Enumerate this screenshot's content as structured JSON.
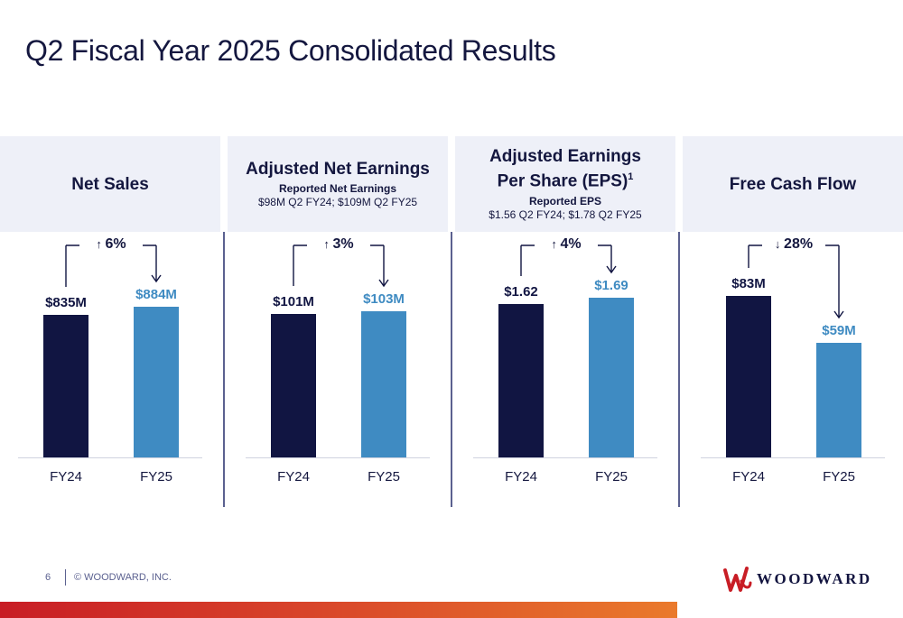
{
  "header": {
    "title": "Q2 Fiscal Year 2025 Consolidated Results"
  },
  "colors": {
    "fy24": "#111542",
    "fy25": "#3f8bc2",
    "panel_bg": "#eef0f8",
    "accent_red": "#c81d25"
  },
  "panels": [
    {
      "title": "Net Sales",
      "title_sup": "",
      "sub1": "",
      "sub2": "",
      "change": "6%",
      "direction": "up"
    },
    {
      "title": "Adjusted Net Earnings",
      "title_sup": "",
      "sub1": "Reported Net Earnings",
      "sub2": "$98M Q2 FY24; $109M Q2 FY25",
      "change": "3%",
      "direction": "up"
    },
    {
      "title": "Adjusted Earnings Per Share (EPS)",
      "title_sup": "1",
      "sub1": "Reported EPS",
      "sub2": "$1.56 Q2 FY24; $1.78 Q2 FY25",
      "change": "4%",
      "direction": "up"
    },
    {
      "title": "Free Cash Flow",
      "title_sup": "",
      "sub1": "",
      "sub2": "",
      "change": "28%",
      "direction": "down"
    }
  ],
  "chart_data": [
    {
      "type": "bar",
      "title": "Net Sales",
      "categories": [
        "FY24",
        "FY25"
      ],
      "values": [
        835,
        884
      ],
      "labels": [
        "$835M",
        "$884M"
      ],
      "unit": "$M"
    },
    {
      "type": "bar",
      "title": "Adjusted Net Earnings",
      "categories": [
        "FY24",
        "FY25"
      ],
      "values": [
        101,
        103
      ],
      "labels": [
        "$101M",
        "$103M"
      ],
      "unit": "$M"
    },
    {
      "type": "bar",
      "title": "Adjusted Earnings Per Share (EPS)",
      "categories": [
        "FY24",
        "FY25"
      ],
      "values": [
        1.62,
        1.69
      ],
      "labels": [
        "$1.62",
        "$1.69"
      ],
      "unit": "$"
    },
    {
      "type": "bar",
      "title": "Free Cash Flow",
      "categories": [
        "FY24",
        "FY25"
      ],
      "values": [
        83,
        59
      ],
      "labels": [
        "$83M",
        "$59M"
      ],
      "unit": "$M"
    }
  ],
  "footer": {
    "page": "6",
    "copyright": "© WOODWARD, INC.",
    "logo_text": "WOODWARD",
    "logo_mark": "W"
  }
}
